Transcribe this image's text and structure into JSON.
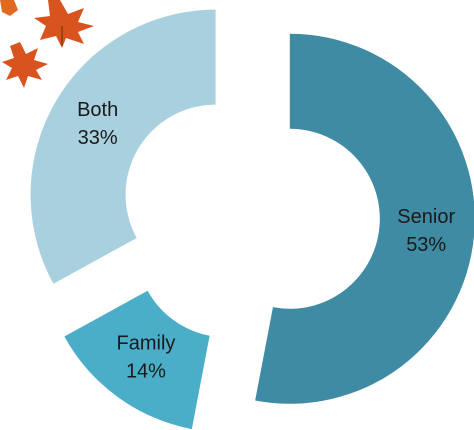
{
  "chart_data": {
    "type": "donut",
    "categories": [
      "Senior",
      "Family",
      "Both"
    ],
    "values": [
      53,
      14,
      33
    ],
    "value_labels": [
      "53%",
      "14%",
      "33%"
    ],
    "colors": [
      "#3e8ba3",
      "#4aaec8",
      "#a9d0df"
    ]
  }
}
